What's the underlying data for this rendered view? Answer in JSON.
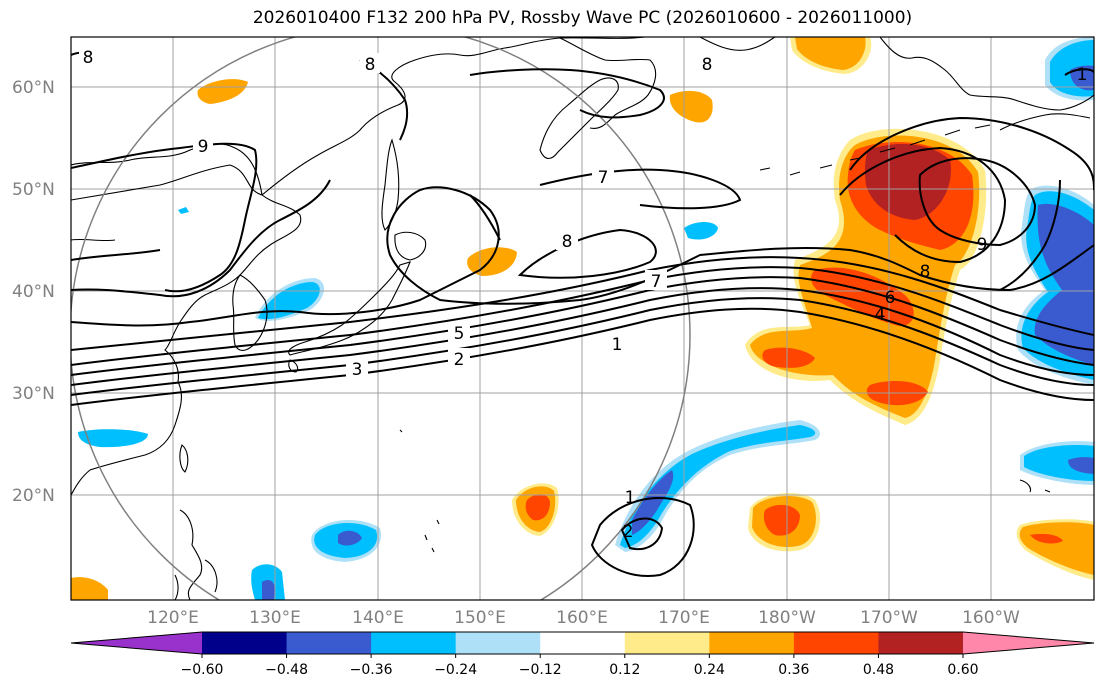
{
  "title": "2026010400 F132 200 hPa PV, Rossby Wave PC (2026010600 - 2026011000)",
  "lat_labels": [
    "60°N",
    "50°N",
    "40°N",
    "30°N",
    "20°N"
  ],
  "lon_labels": [
    "120°E",
    "130°E",
    "140°E",
    "150°E",
    "160°E",
    "170°E",
    "180°W",
    "170°W",
    "160°W"
  ],
  "colorbar": {
    "ticks": [
      "−0.60",
      "−0.48",
      "−0.36",
      "−0.24",
      "−0.12",
      "0.12",
      "0.24",
      "0.36",
      "0.48",
      "0.60"
    ],
    "colors": [
      "#9932cc",
      "#00008b",
      "#3a5bd0",
      "#00bfff",
      "#aee0f8",
      "#ffffff",
      "#ffeb8a",
      "#ffa500",
      "#ff4500",
      "#b22222",
      "#ff88aa"
    ]
  },
  "contour_labels": {
    "c1": "1",
    "c2": "2",
    "c3": "3",
    "c4": "4",
    "c5": "5",
    "c6": "6",
    "c7a": "7",
    "c7b": "7",
    "c8a": "8",
    "c8b": "8",
    "c8c": "8",
    "c8d": "8",
    "c8e": "8",
    "c9a": "9",
    "c9b": "9",
    "c1b": "1",
    "c2b": "2"
  }
}
